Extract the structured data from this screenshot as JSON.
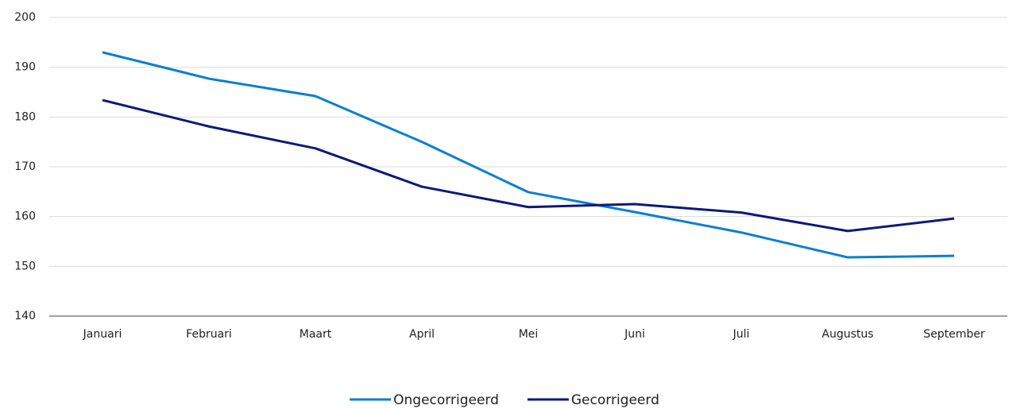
{
  "chart_data": {
    "type": "line",
    "categories": [
      "Januari",
      "Februari",
      "Maart",
      "April",
      "Mei",
      "Juni",
      "Juli",
      "Augustus",
      "September"
    ],
    "series": [
      {
        "name": "Ongecorrigeerd",
        "color": "#0a7fd0",
        "values": [
          193.0,
          187.7,
          184.2,
          175.0,
          164.9,
          160.9,
          156.8,
          151.8,
          152.1
        ]
      },
      {
        "name": "Gecorrigeerd",
        "color": "#0b1a7a",
        "values": [
          183.4,
          178.1,
          173.7,
          166.0,
          161.9,
          162.5,
          160.8,
          157.1,
          159.6
        ]
      }
    ],
    "ylim": [
      140,
      200
    ],
    "yticks": [
      140,
      150,
      160,
      170,
      180,
      190,
      200
    ],
    "grid": true,
    "legend": "bottom"
  }
}
